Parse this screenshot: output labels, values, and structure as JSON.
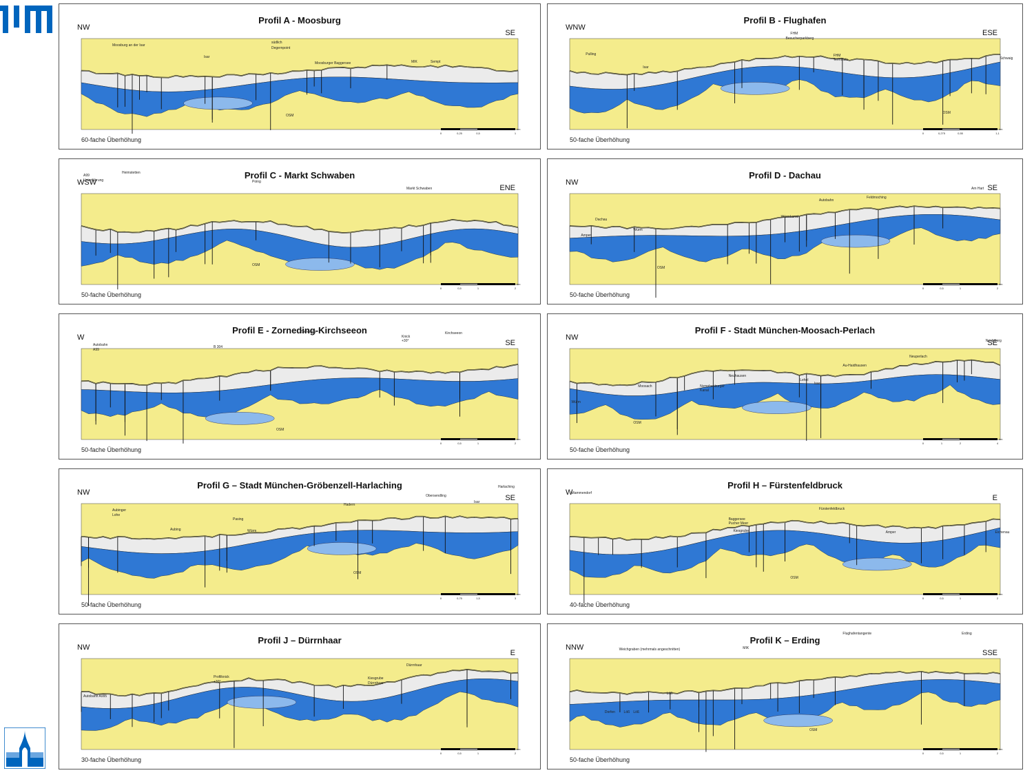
{
  "colors": {
    "gravel": "#ebebeb",
    "aquifer": "#2f78d4",
    "aquifer_light": "#8cb9ec",
    "molasse": "#f4ec8c",
    "loam": "#f0e68c",
    "tum_blue": "#0065bd"
  },
  "logos": {
    "tum": "tum-logo-icon",
    "corner": "institute-logo-icon"
  },
  "panels": [
    {
      "id": "A",
      "title": "Profil A - Moosburg",
      "left": "NW",
      "right": "SE",
      "exag": "60-fache Überhöhung",
      "labels": [
        "Moosburg an der Isar",
        "Isar",
        "südlich",
        "Degernpoint",
        "Moosburger Baggersee",
        "MIK",
        "Sempt",
        "OSM"
      ],
      "scale": [
        "0",
        "0,25",
        "0,5",
        "1"
      ],
      "scale_unit": "km"
    },
    {
      "id": "B",
      "title": "Profil B - Flughafen",
      "left": "WNW",
      "right": "ESE",
      "exag": "50-fache Überhöhung",
      "labels": [
        "Pulling",
        "Isar",
        "FHM",
        "Besucherparkberg",
        "FHM",
        "Terminals",
        "Schwaig",
        "OSM"
      ],
      "scale": [
        "0",
        "0,275",
        "0,55",
        "1,1"
      ],
      "scale_unit": "km"
    },
    {
      "id": "C",
      "title": "Profil C - Markt Schwaben",
      "left": "WSW",
      "right": "ENE",
      "exag": "50-fache Überhöhung",
      "labels": [
        "A99",
        "Unterführung",
        "Heimstetten",
        "Poing",
        "Markt Schwaben",
        "OSM"
      ],
      "scale": [
        "0",
        "0,5",
        "1",
        "2"
      ],
      "scale_unit": "km"
    },
    {
      "id": "D",
      "title": "Profil D - Dachau",
      "left": "NW",
      "right": "SE",
      "exag": "50-fache Überhöhung",
      "labels": [
        "Dachau",
        "Amper",
        "Würm",
        "Würmkanal",
        "Autobahn",
        "Feldmoching",
        "Am Hart",
        "OSM"
      ],
      "scale": [
        "0",
        "0,5",
        "1",
        "2"
      ],
      "scale_unit": "km"
    },
    {
      "id": "E",
      "title": "Profil E - Zorneding-Kirchseeon",
      "left": "W",
      "right": "SE",
      "exag": "50-fache Überhöhung",
      "labels": [
        "Autobahn",
        "A99",
        "B 304",
        "Zorneding",
        "Knick",
        "+30°",
        "Kirchseeon",
        "OSM"
      ],
      "scale": [
        "0",
        "0,5",
        "1",
        "2"
      ],
      "scale_unit": "km"
    },
    {
      "id": "F",
      "title": "Profil F - Stadt München-Moosach-Perlach",
      "left": "NW",
      "right": "SE",
      "exag": "50-fache Überhöhung",
      "labels": [
        "Würm",
        "Moosach",
        "Nymphenburger",
        "Kanal",
        "Neuhausen",
        "Lehel",
        "Isar",
        "Au-Haidhausen",
        "Neuperlach",
        "Neubiberg",
        "OSM"
      ],
      "scale": [
        "0",
        "1",
        "2",
        "4"
      ],
      "scale_unit": "km"
    },
    {
      "id": "G",
      "title": "Profil G – Stadt München-Gröbenzell-Harlaching",
      "left": "NW",
      "right": "SE",
      "exag": "50-fache Überhöhung",
      "labels": [
        "Aubinger",
        "Lohe",
        "Aubing",
        "Pasing",
        "Würm",
        "Hadern",
        "Obersendling",
        "Isar",
        "Harlaching",
        "OSM"
      ],
      "scale": [
        "0",
        "0,75",
        "1,5",
        "3"
      ],
      "scale_unit": "km"
    },
    {
      "id": "H",
      "title": "Profil H – Fürstenfeldbruck",
      "left": "W",
      "right": "E",
      "exag": "40-fache Überhöhung",
      "labels": [
        "Mammendorf",
        "Baggersee",
        "Pucher Meer",
        "Kiesgrube",
        "Fürstenfeldbruck",
        "Amper",
        "Eichenau",
        "OSM"
      ],
      "scale": [
        "0",
        "0,5",
        "1",
        "2"
      ],
      "scale_unit": "km"
    },
    {
      "id": "J",
      "title": "Profil J – Dürrnhaar",
      "left": "NW",
      "right": "E",
      "exag": "30-fache Überhöhung",
      "labels": [
        "Autobahn A995",
        "Profilknick",
        "+30°",
        "Kiesgrube",
        "Dürrnhaar",
        "Dürrnhaar"
      ],
      "scale": [
        "0",
        "0,5",
        "1",
        "2"
      ],
      "scale_unit": "km"
    },
    {
      "id": "K",
      "title": "Profil K – Erding",
      "left": "NNW",
      "right": "SSE",
      "exag": "50-fache Überhöhung",
      "labels": [
        "Weichgraben (mehrmals angeschnitten)",
        "MIK",
        "Flughafentangente",
        "Erding",
        "Dorfen",
        "Löß",
        "Löß",
        "Löß",
        "OSM"
      ],
      "scale": [
        "0",
        "0,5",
        "1",
        "2"
      ],
      "scale_unit": "km"
    }
  ]
}
